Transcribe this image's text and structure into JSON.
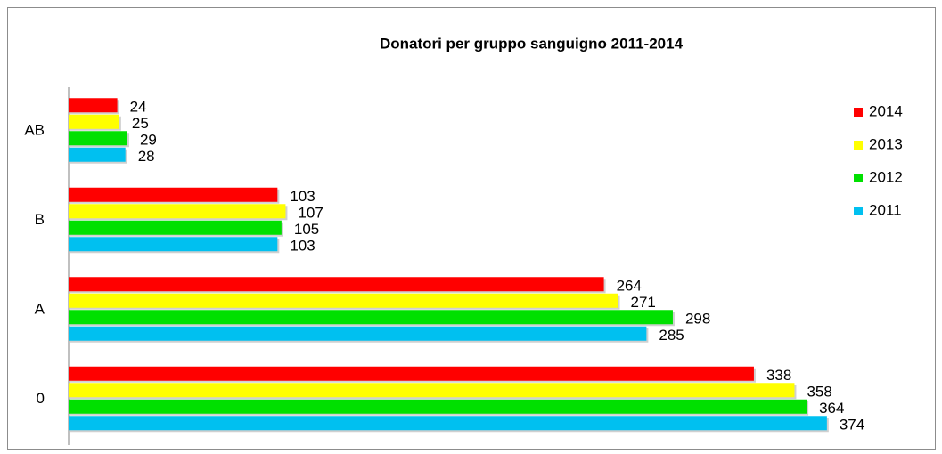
{
  "chart_data": {
    "type": "bar",
    "orientation": "horizontal",
    "title": "Donatori per gruppo sanguigno 2011-2014",
    "categories": [
      "AB",
      "B",
      "A",
      "0"
    ],
    "series": [
      {
        "name": "2014",
        "color": "#ff0000",
        "values": [
          24,
          103,
          264,
          338
        ]
      },
      {
        "name": "2013",
        "color": "#ffff00",
        "values": [
          25,
          107,
          271,
          358
        ]
      },
      {
        "name": "2012",
        "color": "#00e000",
        "values": [
          29,
          105,
          298,
          364
        ]
      },
      {
        "name": "2011",
        "color": "#00c0f0",
        "values": [
          28,
          103,
          285,
          374
        ]
      }
    ],
    "xlim": [
      0,
      400
    ],
    "legend": "right",
    "data_labels": true
  }
}
